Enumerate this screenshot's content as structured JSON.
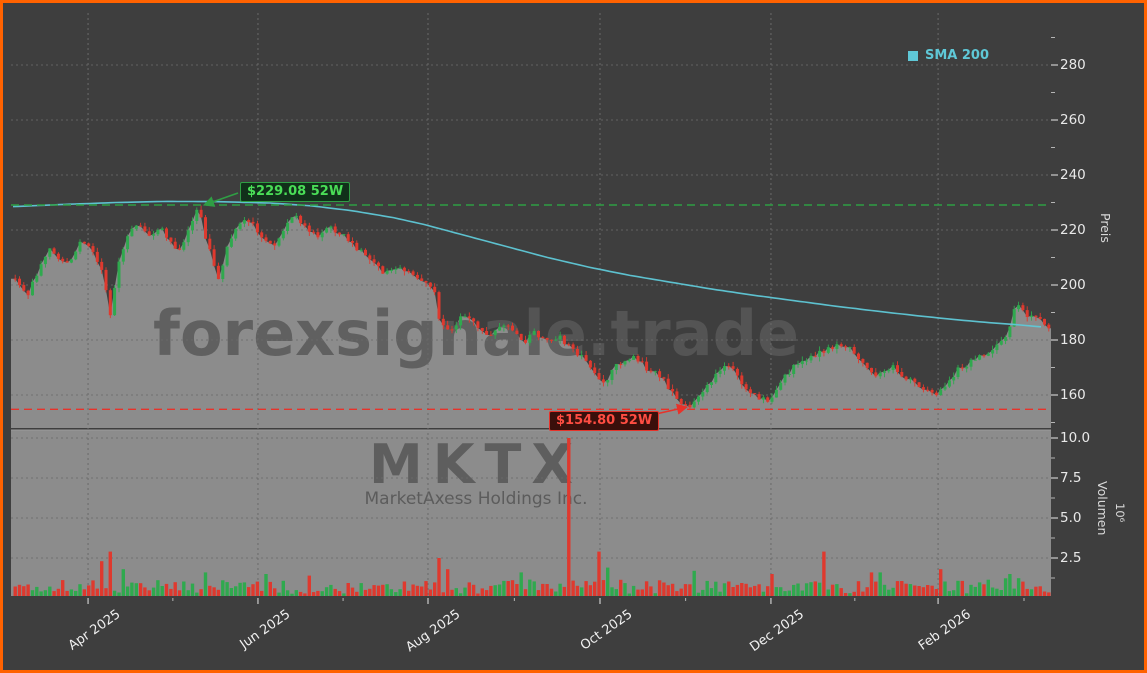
{
  "frame": {
    "bg": "#3e3e3e",
    "border_color": "#ff6200"
  },
  "watermark": {
    "line1": "forexsignale.trade",
    "line2": "MKTX",
    "line3": "MarketAxess Holdings Inc."
  },
  "legend": {
    "sma_label": "SMA 200"
  },
  "annotations": {
    "high": {
      "label": "$229.08 52W",
      "value": 229.08
    },
    "low": {
      "label": "$154.80 52W",
      "value": 154.8
    }
  },
  "axes": {
    "price": {
      "label": "Preis",
      "ticks": [
        "160",
        "180",
        "200",
        "220",
        "240",
        "260",
        "280"
      ]
    },
    "volume": {
      "label": "Volumen",
      "unit": "10⁶",
      "ticks": [
        "2.5",
        "5.0",
        "7.5",
        "10.0"
      ]
    },
    "x": {
      "labels": [
        "Apr 2025",
        "Jun 2025",
        "Aug 2025",
        "Oct 2025",
        "Dec 2025",
        "Feb 2026"
      ],
      "positions": [
        0.0723,
        0.236,
        0.3998,
        0.5655,
        0.7302,
        0.8912
      ],
      "minor_positions": [
        0.154,
        0.318,
        0.483,
        0.648,
        0.811,
        0.974
      ]
    }
  },
  "colors": {
    "up": "#2fa94e",
    "down": "#df392e",
    "sma": "#5fc8d7",
    "area": "#8c8c8c",
    "volume_pane": "#8c8c8c",
    "grid": "#6a6a6a",
    "tick": "#e8e8e8",
    "high_line": "#2f9e44",
    "low_line": "#e8322a",
    "badge_high_bg": "#11301a",
    "badge_high_text": "#4ade57",
    "badge_low_bg": "#3a0f0b",
    "badge_low_text": "#ff4d42"
  },
  "chart_data": {
    "type": "candlestick",
    "instrument": "MKTX",
    "company": "MarketAxess Holdings Inc.",
    "legend": [
      "SMA 200"
    ],
    "price_axis": {
      "label": "Preis",
      "ticks": [
        160,
        180,
        200,
        220,
        240,
        260,
        280
      ],
      "range": [
        148,
        299
      ]
    },
    "volume_axis": {
      "label": "Volumen",
      "scale": "10⁶",
      "ticks": [
        2.5,
        5.0,
        7.5,
        10.0
      ],
      "range": [
        0,
        10.5
      ]
    },
    "x_axis_ticks": [
      "Apr 2025",
      "Jun 2025",
      "Aug 2025",
      "Oct 2025",
      "Dec 2025",
      "Feb 2026"
    ],
    "levels": {
      "high_52w": 229.08,
      "low_52w": 154.8
    },
    "n_candles": 240,
    "close_keypoints": [
      [
        0.0,
        203
      ],
      [
        0.006,
        199
      ],
      [
        0.012,
        196
      ],
      [
        0.022,
        205
      ],
      [
        0.034,
        213
      ],
      [
        0.05,
        207
      ],
      [
        0.064,
        216
      ],
      [
        0.075,
        212
      ],
      [
        0.083,
        207
      ],
      [
        0.092,
        190
      ],
      [
        0.102,
        212
      ],
      [
        0.116,
        223
      ],
      [
        0.13,
        218
      ],
      [
        0.143,
        220
      ],
      [
        0.152,
        215
      ],
      [
        0.16,
        213
      ],
      [
        0.17,
        223
      ],
      [
        0.177,
        228
      ],
      [
        0.184,
        218
      ],
      [
        0.191,
        210
      ],
      [
        0.197,
        202
      ],
      [
        0.205,
        214
      ],
      [
        0.215,
        221
      ],
      [
        0.228,
        224
      ],
      [
        0.241,
        216
      ],
      [
        0.252,
        213
      ],
      [
        0.262,
        222
      ],
      [
        0.27,
        226
      ],
      [
        0.28,
        221
      ],
      [
        0.292,
        217
      ],
      [
        0.303,
        221
      ],
      [
        0.315,
        219
      ],
      [
        0.33,
        213
      ],
      [
        0.345,
        210
      ],
      [
        0.358,
        204
      ],
      [
        0.37,
        207
      ],
      [
        0.383,
        205
      ],
      [
        0.395,
        201
      ],
      [
        0.405,
        199
      ],
      [
        0.411,
        186
      ],
      [
        0.42,
        183
      ],
      [
        0.432,
        188
      ],
      [
        0.445,
        186
      ],
      [
        0.458,
        182
      ],
      [
        0.47,
        186
      ],
      [
        0.482,
        184
      ],
      [
        0.492,
        179
      ],
      [
        0.503,
        183
      ],
      [
        0.515,
        179
      ],
      [
        0.527,
        181
      ],
      [
        0.538,
        177
      ],
      [
        0.549,
        174
      ],
      [
        0.56,
        169
      ],
      [
        0.57,
        164
      ],
      [
        0.58,
        170
      ],
      [
        0.59,
        173
      ],
      [
        0.6,
        174
      ],
      [
        0.61,
        170
      ],
      [
        0.621,
        168
      ],
      [
        0.632,
        163
      ],
      [
        0.643,
        158
      ],
      [
        0.652,
        155.5
      ],
      [
        0.66,
        160
      ],
      [
        0.67,
        164
      ],
      [
        0.68,
        168
      ],
      [
        0.69,
        171
      ],
      [
        0.7,
        166
      ],
      [
        0.71,
        161
      ],
      [
        0.72,
        159
      ],
      [
        0.728,
        158
      ],
      [
        0.74,
        164
      ],
      [
        0.752,
        170
      ],
      [
        0.764,
        173
      ],
      [
        0.776,
        175
      ],
      [
        0.788,
        177
      ],
      [
        0.8,
        178
      ],
      [
        0.812,
        176
      ],
      [
        0.822,
        171
      ],
      [
        0.83,
        167
      ],
      [
        0.84,
        169
      ],
      [
        0.85,
        170
      ],
      [
        0.86,
        166
      ],
      [
        0.872,
        164
      ],
      [
        0.882,
        162
      ],
      [
        0.892,
        159.5
      ],
      [
        0.902,
        164
      ],
      [
        0.912,
        169
      ],
      [
        0.922,
        171
      ],
      [
        0.932,
        174
      ],
      [
        0.942,
        176
      ],
      [
        0.952,
        179
      ],
      [
        0.96,
        183
      ],
      [
        0.968,
        193
      ],
      [
        0.976,
        190
      ],
      [
        0.985,
        188
      ],
      [
        1.0,
        185
      ]
    ],
    "sma200_keypoints": [
      [
        0.0,
        228.5
      ],
      [
        0.05,
        229.3
      ],
      [
        0.1,
        230.0
      ],
      [
        0.15,
        230.4
      ],
      [
        0.2,
        230.3
      ],
      [
        0.25,
        229.8
      ],
      [
        0.29,
        228.8
      ],
      [
        0.33,
        227.0
      ],
      [
        0.37,
        224.5
      ],
      [
        0.4,
        222.0
      ],
      [
        0.44,
        218.0
      ],
      [
        0.48,
        214.0
      ],
      [
        0.52,
        210.0
      ],
      [
        0.56,
        206.5
      ],
      [
        0.6,
        203.5
      ],
      [
        0.64,
        201.0
      ],
      [
        0.68,
        198.5
      ],
      [
        0.72,
        196.3
      ],
      [
        0.76,
        194.3
      ],
      [
        0.8,
        192.3
      ],
      [
        0.84,
        190.5
      ],
      [
        0.88,
        188.8
      ],
      [
        0.92,
        187.3
      ],
      [
        0.95,
        186.3
      ],
      [
        0.975,
        185.6
      ],
      [
        1.0,
        184.8
      ]
    ],
    "volume_base_keypoints": [
      [
        0.0,
        0.85
      ],
      [
        0.15,
        0.8
      ],
      [
        0.3,
        0.7
      ],
      [
        0.45,
        0.75
      ],
      [
        0.6,
        0.8
      ],
      [
        0.75,
        0.7
      ],
      [
        0.9,
        0.75
      ],
      [
        1.0,
        0.95
      ]
    ],
    "volume_spikes": [
      [
        0.084,
        2.3,
        "down"
      ],
      [
        0.091,
        2.9,
        "down"
      ],
      [
        0.104,
        1.8,
        "up"
      ],
      [
        0.183,
        1.6,
        "up"
      ],
      [
        0.243,
        1.5,
        "up"
      ],
      [
        0.284,
        1.4,
        "down"
      ],
      [
        0.409,
        2.5,
        "down"
      ],
      [
        0.417,
        1.8,
        "down"
      ],
      [
        0.491,
        1.6,
        "up"
      ],
      [
        0.535,
        10.0,
        "down"
      ],
      [
        0.566,
        2.9,
        "down"
      ],
      [
        0.574,
        1.9,
        "up"
      ],
      [
        0.655,
        1.7,
        "up"
      ],
      [
        0.732,
        1.5,
        "down"
      ],
      [
        0.782,
        2.9,
        "down"
      ],
      [
        0.828,
        1.6,
        "down"
      ],
      [
        0.836,
        1.6,
        "up"
      ],
      [
        0.896,
        1.8,
        "down"
      ],
      [
        0.961,
        1.5,
        "up"
      ]
    ]
  }
}
